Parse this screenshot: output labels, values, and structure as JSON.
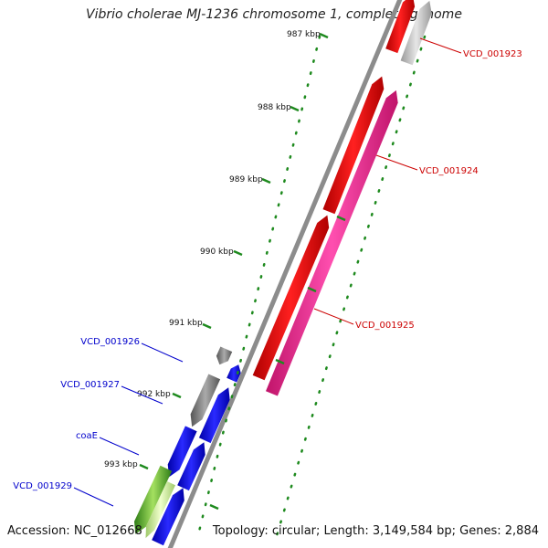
{
  "title": "Vibrio cholerae MJ-1236 chromosome 1, complete genome",
  "footer": {
    "accession": "Accession: NC_012668",
    "summary": "Topology: circular; Length: 3,149,584 bp; Genes: 2,884"
  },
  "colors": {
    "backbone": "#8c8c8c",
    "tick": "#1e8a1e",
    "label_forward": "#cc0000",
    "label_reverse": "#0000cc",
    "gene_red": "#ff0000",
    "gene_pink": "#ff3399",
    "gene_gray": "#9a9a9a",
    "gene_blue": "#0000ff",
    "gene_green": "#66bb33"
  },
  "ticks": [
    {
      "label": "987 kbp"
    },
    {
      "label": "988 kbp"
    },
    {
      "label": "989 kbp"
    },
    {
      "label": "990 kbp"
    },
    {
      "label": "991 kbp"
    },
    {
      "label": "992 kbp"
    },
    {
      "label": "993 kbp"
    }
  ],
  "gene_labels": [
    {
      "text": "VCD_001923",
      "strand": "forward"
    },
    {
      "text": "VCD_001924",
      "strand": "forward"
    },
    {
      "text": "VCD_001925",
      "strand": "forward"
    },
    {
      "text": "VCD_001926",
      "strand": "reverse"
    },
    {
      "text": "VCD_001927",
      "strand": "reverse"
    },
    {
      "text": "coaE",
      "strand": "reverse"
    },
    {
      "text": "VCD_001929",
      "strand": "reverse"
    }
  ]
}
